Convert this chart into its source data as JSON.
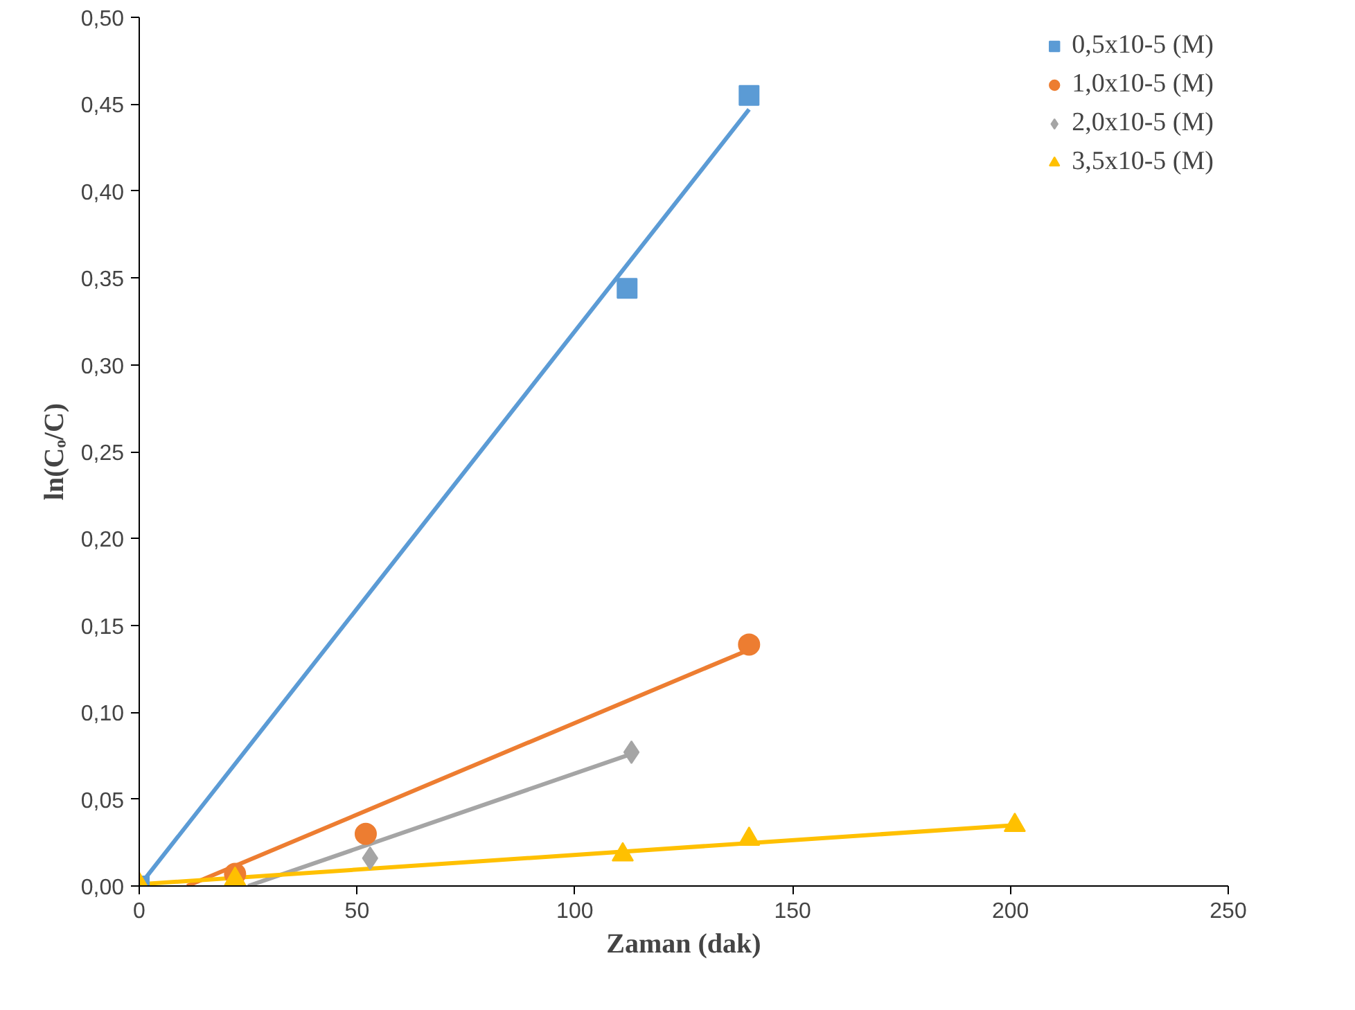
{
  "chart_data": {
    "type": "scatter",
    "xlabel": "Zaman (dak)",
    "ylabel": "ln(Cₒ/C)",
    "xlim": [
      0,
      250
    ],
    "ylim": [
      0,
      0.5
    ],
    "xticks": [
      0,
      50,
      100,
      150,
      200,
      250
    ],
    "yticks": [
      {
        "value": 0,
        "label": "0,00"
      },
      {
        "value": 0.05,
        "label": "0,05"
      },
      {
        "value": 0.1,
        "label": "0,10"
      },
      {
        "value": 0.15,
        "label": "0,15"
      },
      {
        "value": 0.2,
        "label": "0,20"
      },
      {
        "value": 0.25,
        "label": "0,25"
      },
      {
        "value": 0.3,
        "label": "0,30"
      },
      {
        "value": 0.35,
        "label": "0,35"
      },
      {
        "value": 0.4,
        "label": "0,40"
      },
      {
        "value": 0.45,
        "label": "0,45"
      },
      {
        "value": 0.5,
        "label": "0,50"
      }
    ],
    "grid": false,
    "legend": "top right",
    "series": [
      {
        "type": "line",
        "color": "#5b9bd5",
        "x": [
          0,
          140
        ],
        "values": [
          0.0,
          0.447
        ]
      },
      {
        "type": "line",
        "color": "#ed7d31",
        "x": [
          11,
          140
        ],
        "values": [
          0.0,
          0.136
        ]
      },
      {
        "type": "line",
        "color": "#a5a5a5",
        "x": [
          25,
          113
        ],
        "values": [
          0.0,
          0.076
        ]
      },
      {
        "type": "line",
        "color": "#ffc000",
        "x": [
          0,
          201
        ],
        "values": [
          0.001,
          0.035
        ]
      },
      {
        "name": "0,5x10-5 (M)",
        "color": "#5b9bd5",
        "marker": "square",
        "x": [
          0,
          112,
          140
        ],
        "values": [
          0.0,
          0.344,
          0.455
        ]
      },
      {
        "name": "1,0x10-5 (M)",
        "color": "#ed7d31",
        "marker": "circle",
        "x": [
          22,
          52,
          140
        ],
        "values": [
          0.007,
          0.03,
          0.139
        ]
      },
      {
        "name": "2,0x10-5 (M)",
        "color": "#a5a5a5",
        "marker": "diamond",
        "x": [
          53,
          113
        ],
        "values": [
          0.016,
          0.077
        ]
      },
      {
        "name": "3,5x10-5 (M)",
        "color": "#ffc000",
        "marker": "triangle",
        "x": [
          0,
          22,
          111,
          140,
          201
        ],
        "values": [
          0.001,
          0.004,
          0.018,
          0.027,
          0.035
        ]
      }
    ]
  }
}
